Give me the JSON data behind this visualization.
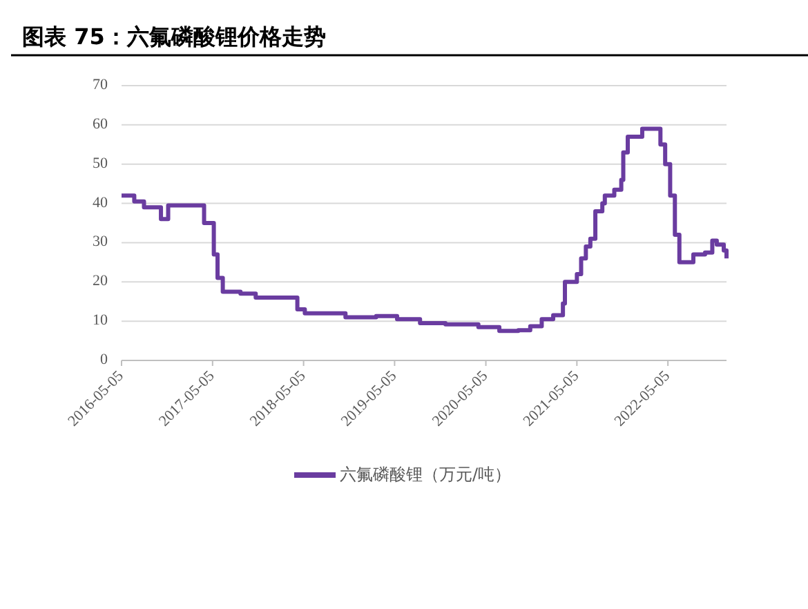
{
  "chart_data": {
    "type": "step",
    "title": "图表 75：六氟磷酸锂价格走势",
    "x": [
      "2016-05-05",
      "2016-06-25",
      "2016-08-03",
      "2016-10-10",
      "2016-11-08",
      "2017-04-01",
      "2017-05-10",
      "2017-05-25",
      "2017-06-15",
      "2017-08-25",
      "2017-10-25",
      "2018-04-10",
      "2018-05-10",
      "2018-10-20",
      "2019-02-20",
      "2019-05-15",
      "2019-08-15",
      "2019-11-25",
      "2020-04-05",
      "2020-06-28",
      "2020-09-12",
      "2020-10-30",
      "2020-12-15",
      "2021-01-30",
      "2021-03-10",
      "2021-03-18",
      "2021-05-05",
      "2021-05-22",
      "2021-06-10",
      "2021-06-28",
      "2021-07-18",
      "2021-08-15",
      "2021-08-25",
      "2021-10-02",
      "2021-10-30",
      "2021-11-07",
      "2021-11-25",
      "2022-01-22",
      "2022-03-18",
      "2022-04-05",
      "2022-04-24",
      "2022-05-14",
      "2022-06-02",
      "2022-06-20",
      "2022-07-18",
      "2022-08-15",
      "2022-10-01",
      "2022-10-30",
      "2022-11-17",
      "2022-12-15",
      "2022-12-26"
    ],
    "series": [
      {
        "name": "六氟磷酸锂（万元/吨）",
        "color": "#6a3ca0",
        "values": [
          42,
          40.5,
          39,
          36,
          39.5,
          35,
          27,
          21,
          17.5,
          17,
          16,
          13,
          12,
          11,
          11.3,
          10.5,
          9.5,
          9.2,
          8.5,
          7.5,
          7.7,
          8.7,
          10.5,
          11.5,
          14.5,
          20,
          22,
          26,
          29,
          31,
          38,
          40,
          42,
          43.5,
          46,
          53,
          57,
          59,
          59,
          55,
          50,
          42,
          32,
          25,
          25,
          27,
          27.5,
          30.5,
          29.5,
          28,
          26
        ]
      }
    ],
    "xlim": [
      "2016-05-05",
      "2022-12-26"
    ],
    "xticks": [
      {
        "value": "2016-05-05",
        "label": "2016-05-05"
      },
      {
        "value": "2017-05-05",
        "label": "2017-05-05"
      },
      {
        "value": "2018-05-05",
        "label": "2018-05-05"
      },
      {
        "value": "2019-05-05",
        "label": "2019-05-05"
      },
      {
        "value": "2020-05-05",
        "label": "2020-05-05"
      },
      {
        "value": "2021-05-05",
        "label": "2021-05-05"
      },
      {
        "value": "2022-05-05",
        "label": "2022-05-05"
      }
    ],
    "ylim": [
      0,
      70
    ],
    "yticks": [
      0,
      10,
      20,
      30,
      40,
      50,
      60,
      70
    ],
    "grid": "y",
    "legend": "bottom",
    "line_style": "solid"
  }
}
